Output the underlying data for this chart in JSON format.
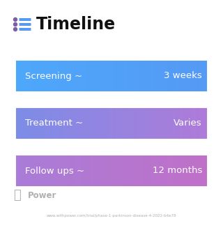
{
  "title": "Timeline",
  "background_color": "#ffffff",
  "rows": [
    {
      "label": "Screening ~",
      "value": "3 weeks",
      "color_left": "#4da8fb",
      "color_right": "#5599f5"
    },
    {
      "label": "Treatment ~",
      "value": "Varies",
      "color_left": "#7b8de8",
      "color_right": "#b07ad8"
    },
    {
      "label": "Follow ups ~",
      "value": "12 months",
      "color_left": "#a87dd8",
      "color_right": "#c070c8"
    }
  ],
  "icon_color": "#7b5ea7",
  "icon_dot_color": "#7b5ea7",
  "title_color": "#111111",
  "text_color": "#ffffff",
  "footer_text": "Power",
  "footer_color": "#b0b0b0",
  "url_text": "www.withpower.com/trial/phase-1-parkinson-disease-4-2022-b4e78",
  "url_color": "#b0b0b0",
  "title_fontsize": 17,
  "label_fontsize": 9.5,
  "value_fontsize": 9.5,
  "footer_fontsize": 8.5,
  "url_fontsize": 4.0
}
